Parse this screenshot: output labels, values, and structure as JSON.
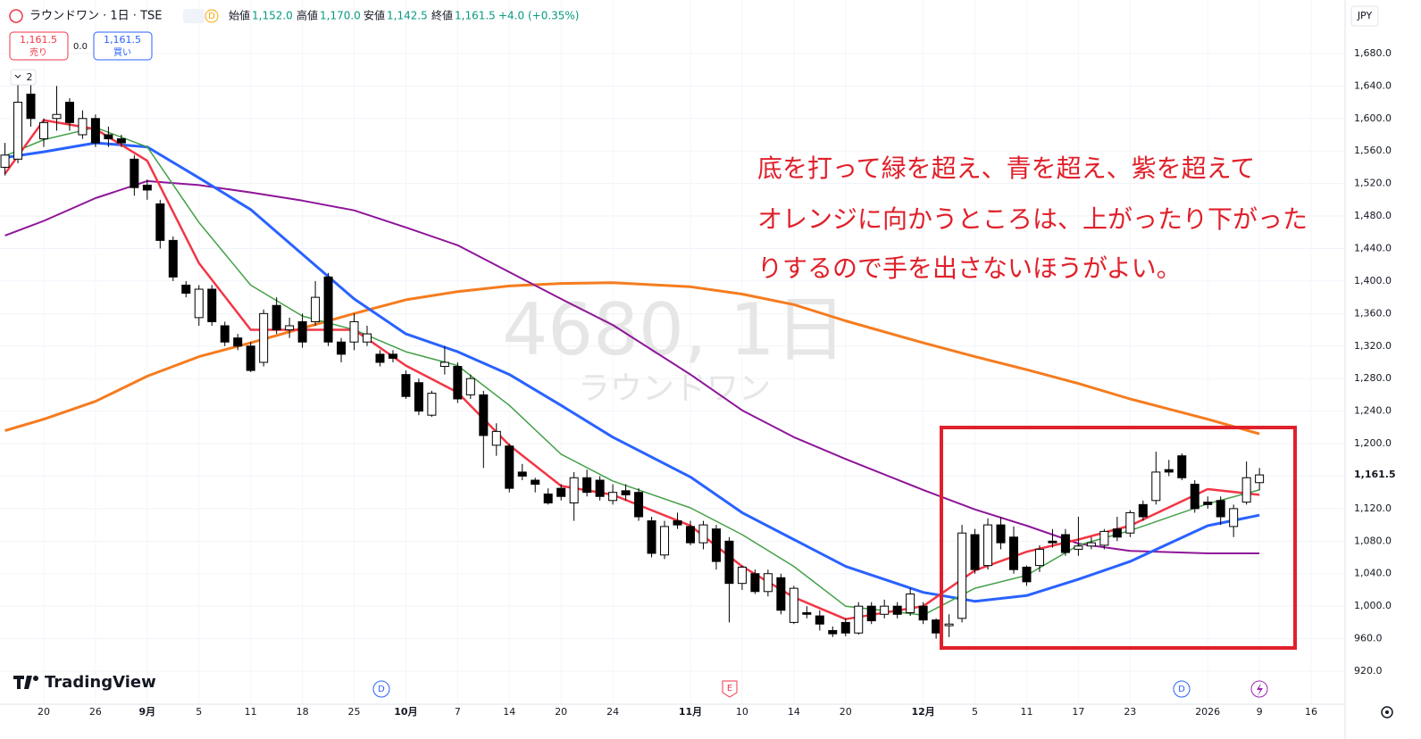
{
  "header": {
    "symbol_line": "ラウンドワン · 1日 · TSE",
    "badge": "D",
    "open_label": "始値",
    "open": "1,152.0",
    "high_label": "高値",
    "high": "1,170.0",
    "low_label": "安値",
    "low": "1,142.5",
    "close_label": "終値",
    "close": "1,161.5",
    "change": "+4.0 (+0.35%)"
  },
  "trade": {
    "sell_price": "1,161.5",
    "sell": "売り",
    "spread": "0.0",
    "buy_price": "1,161.5",
    "buy": "買い"
  },
  "indicators": "2",
  "currency": "JPY",
  "watermark": {
    "symbol": "4680, 1日",
    "name": "ラウンドワン"
  },
  "annotation": [
    "底を打って緑を超え、青を超え、紫を超えて",
    "オレンジに向かうところは、上がったり下がった",
    "りするので手を出さないほうがよい。"
  ],
  "events": {
    "dividend_1": "D",
    "earnings": "E",
    "dividend_2": "D"
  },
  "brand": "TradingView",
  "chart_data": {
    "type": "candlestick",
    "categories": [
      null,
      null,
      null,
      "20",
      null,
      null,
      null,
      "26",
      null,
      null,
      null,
      "9月",
      null,
      null,
      null,
      "5",
      null,
      null,
      null,
      "11",
      null,
      null,
      null,
      "18",
      null,
      null,
      null,
      "25",
      null,
      null,
      null,
      "10月",
      null,
      null,
      null,
      "7",
      null,
      null,
      null,
      "14",
      null,
      null,
      null,
      "20",
      null,
      null,
      null,
      "24",
      null,
      null,
      null,
      null,
      null,
      "11月",
      null,
      null,
      null,
      "10",
      null,
      null,
      null,
      "14",
      null,
      null,
      null,
      "20",
      null,
      null,
      null,
      null,
      null,
      "12月",
      null,
      null,
      null,
      "5",
      null,
      null,
      null,
      "11",
      null,
      null,
      null,
      "17",
      null,
      null,
      null,
      "23",
      null,
      null,
      null,
      null,
      null,
      "2026",
      null,
      null,
      null,
      "9",
      null,
      null,
      null,
      "16"
    ],
    "open": [
      1540,
      1550,
      1630,
      1575,
      1600,
      1620,
      1580,
      1600,
      1580,
      1575,
      1550,
      1518,
      1495,
      1450,
      1395,
      1355,
      1390,
      1345,
      1330,
      1320,
      1300,
      1370,
      1340,
      1350,
      1350,
      1405,
      1325,
      1325,
      1325,
      1310,
      1310,
      1285,
      1275,
      1235,
      1295,
      1295,
      1260,
      1260,
      1198,
      1197,
      1165,
      1155,
      1138,
      1145,
      1127,
      1158,
      1155,
      1130,
      1142,
      1140,
      1105,
      1063,
      1105,
      1098,
      1078,
      1095,
      1080,
      1028,
      1040,
      1018,
      1035,
      980,
      992,
      988,
      970,
      980,
      967,
      1000,
      990,
      1000,
      992,
      1000,
      983,
      976,
      985,
      1088,
      1050,
      1100,
      1085,
      1048,
      1050,
      1080,
      1088,
      1070,
      1074,
      1075,
      1095,
      1090,
      1125,
      1130,
      1168,
      1185,
      1150,
      1128,
      1130,
      1098,
      1128,
      1152,
      null,
      null,
      null,
      null
    ],
    "high": [
      1570,
      1650,
      1650,
      1600,
      1640,
      1625,
      1610,
      1605,
      1590,
      1580,
      1555,
      1525,
      1500,
      1455,
      1400,
      1395,
      1395,
      1350,
      1335,
      1325,
      1365,
      1380,
      1355,
      1360,
      1400,
      1410,
      1330,
      1360,
      1345,
      1315,
      1315,
      1290,
      1280,
      1265,
      1320,
      1300,
      1285,
      1265,
      1225,
      1200,
      1175,
      1158,
      1145,
      1150,
      1165,
      1168,
      1160,
      1150,
      1150,
      1145,
      1110,
      1105,
      1115,
      1105,
      1105,
      1100,
      1085,
      1050,
      1045,
      1045,
      1040,
      1025,
      1000,
      995,
      975,
      985,
      1005,
      1005,
      1008,
      1005,
      1022,
      1005,
      985,
      990,
      1100,
      1095,
      1108,
      1110,
      1098,
      1050,
      1075,
      1095,
      1095,
      1110,
      1085,
      1095,
      1110,
      1118,
      1130,
      1190,
      1180,
      1188,
      1155,
      1135,
      1135,
      1125,
      1178,
      1170,
      null,
      null,
      null,
      null
    ],
    "low": [
      1530,
      1545,
      1590,
      1565,
      1585,
      1585,
      1575,
      1565,
      1565,
      1565,
      1505,
      1500,
      1440,
      1400,
      1380,
      1345,
      1345,
      1320,
      1315,
      1288,
      1295,
      1335,
      1330,
      1318,
      1345,
      1320,
      1300,
      1315,
      1320,
      1295,
      1300,
      1255,
      1235,
      1233,
      1285,
      1250,
      1255,
      1170,
      1185,
      1140,
      1155,
      1140,
      1125,
      1130,
      1105,
      1135,
      1130,
      1125,
      1130,
      1105,
      1060,
      1058,
      1095,
      1075,
      1070,
      1045,
      980,
      1020,
      1015,
      1012,
      990,
      978,
      985,
      970,
      962,
      963,
      965,
      978,
      985,
      985,
      988,
      978,
      960,
      962,
      980,
      1040,
      1045,
      1070,
      1040,
      1025,
      1042,
      1072,
      1062,
      1062,
      1070,
      1070,
      1080,
      1085,
      1105,
      1125,
      1160,
      1155,
      1115,
      1120,
      1100,
      1085,
      1125,
      1142.5,
      null,
      null,
      null,
      null
    ],
    "close": [
      1555,
      1620,
      1600,
      1595,
      1605,
      1595,
      1600,
      1570,
      1575,
      1570,
      1515,
      1512,
      1450,
      1405,
      1385,
      1390,
      1350,
      1325,
      1320,
      1290,
      1360,
      1340,
      1345,
      1325,
      1380,
      1325,
      1310,
      1350,
      1335,
      1300,
      1305,
      1258,
      1240,
      1262,
      1300,
      1255,
      1280,
      1210,
      1215,
      1145,
      1160,
      1150,
      1127,
      1135,
      1158,
      1140,
      1135,
      1140,
      1137,
      1110,
      1065,
      1098,
      1100,
      1078,
      1100,
      1055,
      1028,
      1048,
      1018,
      1040,
      995,
      1022,
      990,
      978,
      966,
      967,
      1000,
      982,
      1000,
      990,
      1015,
      983,
      967,
      978,
      1090,
      1045,
      1100,
      1078,
      1045,
      1030,
      1070,
      1078,
      1066,
      1074,
      1078,
      1092,
      1085,
      1115,
      1110,
      1165,
      1165,
      1158,
      1120,
      1125,
      1110,
      1120,
      1158,
      1161.5,
      null,
      null,
      null,
      null
    ],
    "series": [
      {
        "color": "#f57c1f",
        "x": [
          0,
          3,
          7,
          11,
          15,
          19,
          23,
          27,
          31,
          35,
          39,
          43,
          47,
          53,
          57,
          61,
          65,
          71,
          75,
          79,
          83,
          87,
          93,
          97
        ],
        "values": [
          1216,
          1230,
          1252,
          1283,
          1307,
          1324,
          1342,
          1360,
          1377,
          1387,
          1394,
          1397,
          1398,
          1393,
          1384,
          1371,
          1351,
          1324,
          1307,
          1291,
          1274,
          1255,
          1230,
          1212
        ]
      },
      {
        "color": "#8e1599",
        "x": [
          0,
          3,
          7,
          11,
          15,
          19,
          23,
          27,
          31,
          35,
          39,
          43,
          47,
          53,
          57,
          61,
          65,
          71,
          75,
          79,
          83,
          87,
          93,
          97
        ],
        "values": [
          1456,
          1474,
          1502,
          1523,
          1518,
          1509,
          1499,
          1487,
          1466,
          1444,
          1411,
          1378,
          1346,
          1285,
          1241,
          1208,
          1181,
          1143,
          1119,
          1099,
          1077,
          1068,
          1065,
          1065
        ]
      },
      {
        "color": "#2962ff",
        "x": [
          0,
          3,
          7,
          11,
          15,
          19,
          23,
          27,
          31,
          35,
          39,
          43,
          47,
          53,
          57,
          61,
          65,
          71,
          75,
          79,
          83,
          87,
          93,
          97
        ],
        "values": [
          1552,
          1559,
          1570,
          1565,
          1527,
          1488,
          1433,
          1378,
          1335,
          1313,
          1285,
          1247,
          1208,
          1159,
          1115,
          1082,
          1049,
          1017,
          1006,
          1013,
          1033,
          1055,
          1099,
          1112
        ]
      },
      {
        "color": "#43a047",
        "x": [
          0,
          3,
          7,
          11,
          15,
          19,
          23,
          27,
          31,
          35,
          39,
          43,
          47,
          53,
          57,
          61,
          65,
          71,
          75,
          79,
          83,
          87,
          93,
          97
        ],
        "values": [
          1554,
          1574,
          1589,
          1565,
          1472,
          1395,
          1357,
          1340,
          1313,
          1296,
          1247,
          1187,
          1154,
          1121,
          1088,
          1049,
          1000,
          989,
          1022,
          1038,
          1075,
          1093,
          1126,
          1143
        ]
      },
      {
        "color": "#f23645",
        "x": [
          0,
          3,
          7,
          11,
          15,
          19,
          23,
          27,
          31,
          35,
          39,
          43,
          47,
          53,
          57,
          61,
          65,
          71,
          75,
          79,
          83,
          87,
          93,
          97
        ],
        "values": [
          1532,
          1598,
          1587,
          1548,
          1422,
          1340,
          1340,
          1340,
          1296,
          1263,
          1198,
          1148,
          1137,
          1099,
          1049,
          1011,
          984,
          1000,
          1044,
          1067,
          1082,
          1099,
          1144,
          1137
        ]
      }
    ],
    "ylim": [
      879.4,
      1745.8
    ],
    "yticks": [
      {
        "value": 920,
        "label": "920.0"
      },
      {
        "value": 960,
        "label": "960.0"
      },
      {
        "value": 1000,
        "label": "1,000.0"
      },
      {
        "value": 1040,
        "label": "1,040.0"
      },
      {
        "value": 1080,
        "label": "1,080.0"
      },
      {
        "value": 1120,
        "label": "1,120.0"
      },
      {
        "value": 1160,
        "label": "1,160.0"
      },
      {
        "value": 1200,
        "label": "1,200.0"
      },
      {
        "value": 1240,
        "label": "1,240.0"
      },
      {
        "value": 1280,
        "label": "1,280.0"
      },
      {
        "value": 1320,
        "label": "1,320.0"
      },
      {
        "value": 1360,
        "label": "1,360.0"
      },
      {
        "value": 1400,
        "label": "1,400.0"
      },
      {
        "value": 1440,
        "label": "1,440.0"
      },
      {
        "value": 1480,
        "label": "1,480.0"
      },
      {
        "value": 1520,
        "label": "1,520.0"
      },
      {
        "value": 1560,
        "label": "1,560.0"
      },
      {
        "value": 1600,
        "label": "1,600.0"
      },
      {
        "value": 1640,
        "label": "1,640.0"
      },
      {
        "value": 1680,
        "label": "1,680.0"
      }
    ],
    "last_price": {
      "value": 1161.5,
      "label": "1,161.5"
    },
    "up_color": "#ffffff",
    "down_color": "#000000",
    "grid": true
  }
}
